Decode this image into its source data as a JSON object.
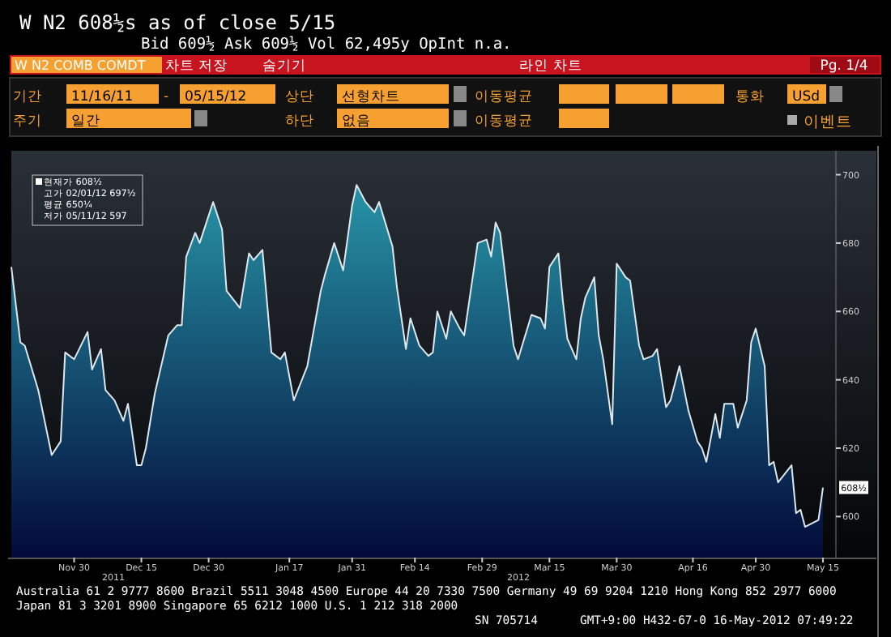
{
  "chart_data": {
    "type": "area",
    "title": "W N2  608½s  as of close 5/15",
    "subtitle": "Bid 609½  Ask 609½  Vol 62,495y OpInt n.a.",
    "x": [
      "2011-11-16",
      "2011-11-18",
      "2011-11-19",
      "2011-11-22",
      "2011-11-25",
      "2011-11-27",
      "2011-11-28",
      "2011-11-30",
      "2011-12-03",
      "2011-12-04",
      "2011-12-06",
      "2011-12-07",
      "2011-12-09",
      "2011-12-11",
      "2011-12-12",
      "2011-12-14",
      "2011-12-15",
      "2011-12-16",
      "2011-12-18",
      "2011-12-21",
      "2011-12-23",
      "2011-12-24",
      "2011-12-25",
      "2011-12-27",
      "2011-12-28",
      "2011-12-31",
      "2012-01-02",
      "2012-01-03",
      "2012-01-06",
      "2012-01-08",
      "2012-01-09",
      "2012-01-11",
      "2012-01-13",
      "2012-01-15",
      "2012-01-16",
      "2012-01-18",
      "2012-01-21",
      "2012-01-24",
      "2012-01-25",
      "2012-01-27",
      "2012-01-29",
      "2012-01-31",
      "2012-02-01",
      "2012-02-03",
      "2012-02-05",
      "2012-02-06",
      "2012-02-09",
      "2012-02-10",
      "2012-02-12",
      "2012-02-13",
      "2012-02-15",
      "2012-02-17",
      "2012-02-18",
      "2012-02-19",
      "2012-02-21",
      "2012-02-22",
      "2012-02-24",
      "2012-02-25",
      "2012-02-28",
      "2012-03-01",
      "2012-03-02",
      "2012-03-03",
      "2012-03-04",
      "2012-03-05",
      "2012-03-07",
      "2012-03-08",
      "2012-03-11",
      "2012-03-13",
      "2012-03-14",
      "2012-03-15",
      "2012-03-17",
      "2012-03-18",
      "2012-03-19",
      "2012-03-21",
      "2012-03-22",
      "2012-03-23",
      "2012-03-25",
      "2012-03-26",
      "2012-03-27",
      "2012-03-29",
      "2012-03-30",
      "2012-04-01",
      "2012-04-02",
      "2012-04-04",
      "2012-04-05",
      "2012-04-07",
      "2012-04-08",
      "2012-04-10",
      "2012-04-11",
      "2012-04-13",
      "2012-04-15",
      "2012-04-17",
      "2012-04-18",
      "2012-04-19",
      "2012-04-21",
      "2012-04-22",
      "2012-04-23",
      "2012-04-25",
      "2012-04-26",
      "2012-04-28",
      "2012-04-29",
      "2012-04-30",
      "2012-05-02",
      "2012-05-03",
      "2012-05-04",
      "2012-05-05",
      "2012-05-08",
      "2012-05-09",
      "2012-05-10",
      "2012-05-11",
      "2012-05-14",
      "2012-05-15"
    ],
    "values": [
      673,
      651,
      650,
      637,
      618,
      622,
      648,
      646,
      654,
      643,
      649,
      637,
      634,
      628,
      633,
      615,
      615,
      620,
      636,
      653,
      656,
      656,
      676,
      683,
      680,
      692,
      684,
      666,
      661,
      677,
      675,
      678,
      648,
      646,
      648,
      634,
      644,
      666,
      671,
      680,
      672,
      691,
      697,
      692,
      689,
      692,
      679,
      667,
      649,
      658,
      650,
      647,
      648,
      660,
      652,
      660,
      655,
      653,
      680,
      681,
      676,
      686,
      683,
      672,
      650,
      646,
      659,
      658,
      655,
      673,
      677,
      663,
      652,
      646,
      658,
      664,
      670,
      653,
      646,
      627,
      674,
      670,
      669,
      650,
      646,
      647,
      649,
      632,
      634,
      644,
      631,
      622,
      620,
      616,
      630,
      623,
      633,
      633,
      626,
      634,
      651,
      655,
      644,
      615,
      616,
      610,
      615,
      601,
      602,
      597,
      599,
      608.5
    ],
    "color": "#dce8ee",
    "xlim": [
      "2011-11-16",
      "2012-05-15"
    ],
    "xticks": [
      {
        "value": "2011-11-30",
        "label": "Nov 30"
      },
      {
        "value": "2011-12-15",
        "label": "Dec 15"
      },
      {
        "value": "2011-12-30",
        "label": "Dec 30"
      },
      {
        "value": "2012-01-17",
        "label": "Jan 17"
      },
      {
        "value": "2012-01-31",
        "label": "Jan 31"
      },
      {
        "value": "2012-02-14",
        "label": "Feb 14"
      },
      {
        "value": "2012-02-29",
        "label": "Feb 29"
      },
      {
        "value": "2012-03-15",
        "label": "Mar 15"
      },
      {
        "value": "2012-03-30",
        "label": "Mar 30"
      },
      {
        "value": "2012-04-16",
        "label": "Apr 16"
      },
      {
        "value": "2012-04-30",
        "label": "Apr 30"
      },
      {
        "value": "2012-05-15",
        "label": "May 15"
      }
    ],
    "ylim": [
      588,
      707
    ],
    "yticks": [
      600,
      620,
      640,
      660,
      680,
      700
    ],
    "annotations": [
      "W N2 COMB COMDT",
      "차트 저장",
      "숨기기",
      "라인 차트",
      "Pg. 1/4",
      "기간",
      "11/16/11",
      "-",
      "05/15/12",
      "상단",
      "선형차트",
      "이동평균",
      "통화",
      "USd",
      "주기",
      "일간",
      "하단",
      "없음",
      "이동평균",
      "이벤트",
      "현재가  608½",
      "고가 02/01/12 697½",
      "평균  650¼",
      "저가 05/11/12 597",
      "2011",
      "2012",
      "Australia 61 2 9777 8600 Brazil 5511 3048 4500 Europe 44 20 7330 7500 Germany 49 69 9204 1210 Hong Kong 852 2977 6000",
      "Japan 81 3 3201 8900        Singapore 65 6212 1000        U.S. 1 212 318 2000",
      "SN 705714",
      "GMT+9:00 H432-67-0 16-May-2012 07:49:22",
      {
        "text": "608½",
        "x": "2012-05-15",
        "y": 608.5
      }
    ]
  }
}
